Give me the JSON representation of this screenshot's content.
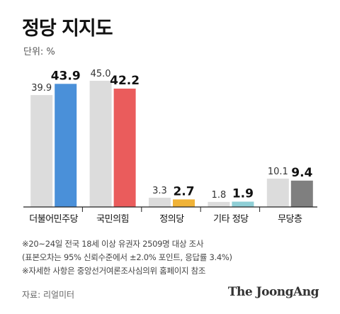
{
  "header": {
    "title": "정당 지지도",
    "unit": "단위: %"
  },
  "chart_data": {
    "type": "bar",
    "categories": [
      "더불어민주당",
      "국민의힘",
      "정의당",
      "기타 정당",
      "무당층"
    ],
    "series": [
      {
        "values": [
          39.9,
          45.0,
          3.3,
          1.8,
          10.1
        ],
        "color": "#dcdcdc"
      },
      {
        "values": [
          43.9,
          42.2,
          2.7,
          1.9,
          9.4
        ],
        "colors": [
          "#4a90d9",
          "#ea5c5c",
          "#f0b338",
          "#8fcfd6",
          "#7f7f7f"
        ]
      }
    ],
    "ylim": [
      0,
      46
    ],
    "title": "정당 지지도",
    "ylabel": "단위: %",
    "legend": "none"
  },
  "notes": [
    "※20~24일 전국 18세 이상 유권자 2509명 대상 조사",
    "(표본오차는 95% 신뢰수준에서 ±2.0% 포인트, 응답률 3.4%)",
    "※자세한 사항은 중앙선거여론조사심의위 홈페이지 참조"
  ],
  "footer": {
    "source": "자료: 리얼미터",
    "brand": "The JoongAng"
  }
}
